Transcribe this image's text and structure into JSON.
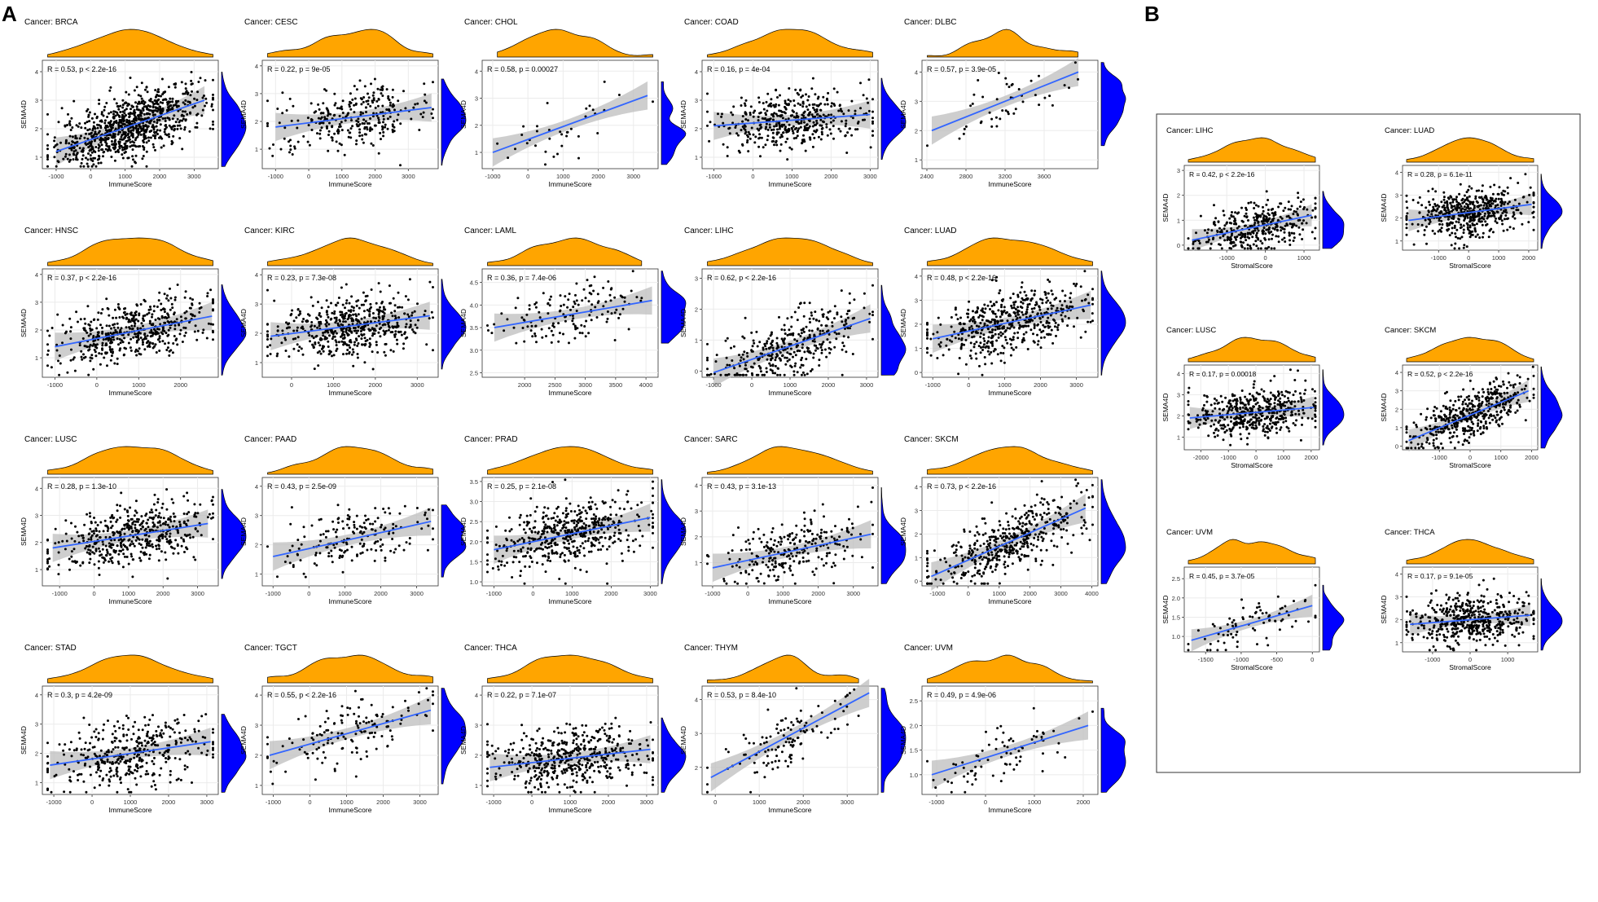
{
  "figure": {
    "panel_a_label": "A",
    "panel_b_label": "B",
    "colors": {
      "top_density": "#FFA500",
      "right_density": "#0000FF",
      "fit_line": "#3366FF",
      "ci_band": "#BEBEBE",
      "points": "#000000",
      "grid": "#EBEBEB",
      "panel_border": "#333333"
    }
  },
  "chart_data": [
    {
      "type": "scatter",
      "panel": "A",
      "title": "Cancer: BRCA",
      "annotation": "R = 0.53, p < 2.2e-16",
      "xlabel": "ImmuneScore",
      "ylabel": "SEMA4D",
      "xlim": [
        -1400,
        3700
      ],
      "ylim": [
        0.6,
        4.4
      ],
      "xticks": [
        "-1000",
        "0",
        "1000",
        "2000",
        "3000"
      ],
      "yticks": [
        "1",
        "2",
        "3",
        "4"
      ],
      "fit": [
        [
          -1000,
          1.2
        ],
        [
          3300,
          3.0
        ]
      ],
      "n_points": 900
    },
    {
      "type": "scatter",
      "panel": "A",
      "title": "Cancer: CESC",
      "annotation": "R = 0.22, p = 9e-05",
      "xlabel": "ImmuneScore",
      "ylabel": "SEMA4D",
      "xlim": [
        -1400,
        3900
      ],
      "ylim": [
        0.3,
        4.2
      ],
      "xticks": [
        "-1000",
        "0",
        "1000",
        "2000",
        "3000"
      ],
      "yticks": [
        "1",
        "2",
        "3",
        "4"
      ],
      "fit": [
        [
          -1000,
          1.8
        ],
        [
          3700,
          2.5
        ]
      ],
      "n_points": 300
    },
    {
      "type": "scatter",
      "panel": "A",
      "title": "Cancer: CHOL",
      "annotation": "R = 0.58, p = 0.00027",
      "xlabel": "ImmuneScore",
      "ylabel": "SEMA4D",
      "xlim": [
        -1300,
        3700
      ],
      "ylim": [
        0.4,
        4.4
      ],
      "xticks": [
        "-1000",
        "0",
        "1000",
        "2000",
        "3000"
      ],
      "yticks": [
        "1",
        "2",
        "3",
        "4"
      ],
      "fit": [
        [
          -1000,
          1.0
        ],
        [
          3400,
          3.1
        ]
      ],
      "n_points": 36
    },
    {
      "type": "scatter",
      "panel": "A",
      "title": "Cancer: COAD",
      "annotation": "R = 0.16, p = 4e-04",
      "xlabel": "ImmuneScore",
      "ylabel": "SEMA4D",
      "xlim": [
        -1300,
        3200
      ],
      "ylim": [
        0.6,
        4.4
      ],
      "xticks": [
        "-1000",
        "0",
        "1000",
        "2000",
        "3000"
      ],
      "yticks": [
        "1",
        "2",
        "3",
        "4"
      ],
      "fit": [
        [
          -1000,
          2.1
        ],
        [
          3000,
          2.5
        ]
      ],
      "n_points": 450
    },
    {
      "type": "scatter",
      "panel": "A",
      "title": "Cancer: DLBC",
      "annotation": "R = 0.57, p = 3.9e-05",
      "xlabel": "ImmuneScore",
      "ylabel": "SEMA4D",
      "xlim": [
        2350,
        4150
      ],
      "ylim": [
        0.7,
        4.4
      ],
      "xticks": [
        "2400",
        "2800",
        "3200",
        "3600"
      ],
      "yticks": [
        "1",
        "2",
        "3",
        "4"
      ],
      "fit": [
        [
          2450,
          2.0
        ],
        [
          3950,
          4.0
        ]
      ],
      "n_points": 47
    },
    {
      "type": "scatter",
      "panel": "A",
      "title": "Cancer: HNSC",
      "annotation": "R = 0.37, p < 2.2e-16",
      "xlabel": "ImmuneScore",
      "ylabel": "SEMA4D",
      "xlim": [
        -1300,
        2900
      ],
      "ylim": [
        0.3,
        4.2
      ],
      "xticks": [
        "-1000",
        "0",
        "1000",
        "2000"
      ],
      "yticks": [
        "1",
        "2",
        "3",
        "4"
      ],
      "fit": [
        [
          -1000,
          1.4
        ],
        [
          2750,
          2.5
        ]
      ],
      "n_points": 500
    },
    {
      "type": "scatter",
      "panel": "A",
      "title": "Cancer: KIRC",
      "annotation": "R = 0.23, p = 7.3e-08",
      "xlabel": "ImmuneScore",
      "ylabel": "SEMA4D",
      "xlim": [
        -700,
        3500
      ],
      "ylim": [
        0.5,
        4.2
      ],
      "xticks": [
        "0",
        "1000",
        "2000",
        "3000"
      ],
      "yticks": [
        "1",
        "2",
        "3",
        "4"
      ],
      "fit": [
        [
          -500,
          1.9
        ],
        [
          3300,
          2.6
        ]
      ],
      "n_points": 530
    },
    {
      "type": "scatter",
      "panel": "A",
      "title": "Cancer: LAML",
      "annotation": "R = 0.36, p = 7.4e-06",
      "xlabel": "ImmuneScore",
      "ylabel": "SEMA4D",
      "xlim": [
        1300,
        4200
      ],
      "ylim": [
        2.4,
        4.8
      ],
      "xticks": [
        "2000",
        "2500",
        "3000",
        "3500",
        "4000"
      ],
      "yticks": [
        "2.5",
        "3.0",
        "3.5",
        "4.0",
        "4.5"
      ],
      "fit": [
        [
          1500,
          3.5
        ],
        [
          4100,
          4.1
        ]
      ],
      "n_points": 150
    },
    {
      "type": "scatter",
      "panel": "A",
      "title": "Cancer: LIHC",
      "annotation": "R = 0.62, p < 2.2e-16",
      "xlabel": "ImmuneScore",
      "ylabel": "SEMA4D",
      "xlim": [
        -1300,
        3300
      ],
      "ylim": [
        -0.2,
        3.3
      ],
      "xticks": [
        "-1000",
        "0",
        "1000",
        "2000",
        "3000"
      ],
      "yticks": [
        "0",
        "1",
        "2",
        "3"
      ],
      "fit": [
        [
          -1000,
          -0.05
        ],
        [
          3100,
          1.7
        ]
      ],
      "n_points": 370
    },
    {
      "type": "scatter",
      "panel": "A",
      "title": "Cancer: LUAD",
      "annotation": "R = 0.48, p < 2.2e-16",
      "xlabel": "ImmuneScore",
      "ylabel": "SEMA4D",
      "xlim": [
        -1300,
        3600
      ],
      "ylim": [
        -0.2,
        4.3
      ],
      "xticks": [
        "-1000",
        "0",
        "1000",
        "2000",
        "3000"
      ],
      "yticks": [
        "0",
        "1",
        "2",
        "3",
        "4"
      ],
      "fit": [
        [
          -1000,
          1.4
        ],
        [
          3400,
          2.8
        ]
      ],
      "n_points": 520
    },
    {
      "type": "scatter",
      "panel": "A",
      "title": "Cancer: LUSC",
      "annotation": "R = 0.28, p = 1.3e-10",
      "xlabel": "ImmuneScore",
      "ylabel": "SEMA4D",
      "xlim": [
        -1500,
        3600
      ],
      "ylim": [
        0.4,
        4.4
      ],
      "xticks": [
        "-1000",
        "0",
        "1000",
        "2000",
        "3000"
      ],
      "yticks": [
        "1",
        "2",
        "3",
        "4"
      ],
      "fit": [
        [
          -1200,
          1.8
        ],
        [
          3300,
          2.7
        ]
      ],
      "n_points": 500
    },
    {
      "type": "scatter",
      "panel": "A",
      "title": "Cancer: PAAD",
      "annotation": "R = 0.43, p = 2.5e-09",
      "xlabel": "ImmuneScore",
      "ylabel": "SEMA4D",
      "xlim": [
        -1300,
        3600
      ],
      "ylim": [
        0.6,
        4.3
      ],
      "xticks": [
        "-1000",
        "0",
        "1000",
        "2000",
        "3000"
      ],
      "yticks": [
        "1",
        "2",
        "3",
        "4"
      ],
      "fit": [
        [
          -1000,
          1.6
        ],
        [
          3400,
          2.8
        ]
      ],
      "n_points": 180
    },
    {
      "type": "scatter",
      "panel": "A",
      "title": "Cancer: PRAD",
      "annotation": "R = 0.25, p = 2.1e-08",
      "xlabel": "ImmuneScore",
      "ylabel": "SEMA4D",
      "xlim": [
        -1300,
        3200
      ],
      "ylim": [
        0.9,
        3.6
      ],
      "xticks": [
        "-1000",
        "0",
        "1000",
        "2000",
        "3000"
      ],
      "yticks": [
        "1.0",
        "1.5",
        "2.0",
        "2.5",
        "3.0",
        "3.5"
      ],
      "fit": [
        [
          -1000,
          1.8
        ],
        [
          3000,
          2.6
        ]
      ],
      "n_points": 500
    },
    {
      "type": "scatter",
      "panel": "A",
      "title": "Cancer: SARC",
      "annotation": "R = 0.43, p = 3.1e-13",
      "xlabel": "ImmuneScore",
      "ylabel": "SEMA4D",
      "xlim": [
        -1300,
        3700
      ],
      "ylim": [
        0.1,
        4.3
      ],
      "xticks": [
        "-1000",
        "0",
        "1000",
        "2000",
        "3000"
      ],
      "yticks": [
        "1",
        "2",
        "3",
        "4"
      ],
      "fit": [
        [
          -1000,
          0.8
        ],
        [
          3500,
          2.1
        ]
      ],
      "n_points": 260
    },
    {
      "type": "scatter",
      "panel": "A",
      "title": "Cancer: SKCM",
      "annotation": "R = 0.73, p < 2.2e-16",
      "xlabel": "ImmuneScore",
      "ylabel": "SEMA4D",
      "xlim": [
        -1500,
        4200
      ],
      "ylim": [
        -0.2,
        4.4
      ],
      "xticks": [
        "-1000",
        "0",
        "1000",
        "2000",
        "3000",
        "4000"
      ],
      "yticks": [
        "0",
        "1",
        "2",
        "3",
        "4"
      ],
      "fit": [
        [
          -1200,
          0.2
        ],
        [
          3800,
          3.1
        ]
      ],
      "n_points": 470
    },
    {
      "type": "scatter",
      "panel": "A",
      "title": "Cancer: STAD",
      "annotation": "R = 0.3, p = 4.2e-09",
      "xlabel": "ImmuneScore",
      "ylabel": "SEMA4D",
      "xlim": [
        -1300,
        3300
      ],
      "ylim": [
        0.6,
        4.3
      ],
      "xticks": [
        "-1000",
        "0",
        "1000",
        "2000",
        "3000"
      ],
      "yticks": [
        "1",
        "2",
        "3",
        "4"
      ],
      "fit": [
        [
          -1100,
          1.6
        ],
        [
          3100,
          2.4
        ]
      ],
      "n_points": 400
    },
    {
      "type": "scatter",
      "panel": "A",
      "title": "Cancer: TGCT",
      "annotation": "R = 0.55, p < 2.2e-16",
      "xlabel": "ImmuneScore",
      "ylabel": "SEMA4D",
      "xlim": [
        -1300,
        3500
      ],
      "ylim": [
        0.7,
        4.3
      ],
      "xticks": [
        "-1000",
        "0",
        "1000",
        "2000",
        "3000"
      ],
      "yticks": [
        "1",
        "2",
        "3",
        "4"
      ],
      "fit": [
        [
          -1100,
          2.0
        ],
        [
          3300,
          3.5
        ]
      ],
      "n_points": 150
    },
    {
      "type": "scatter",
      "panel": "A",
      "title": "Cancer: THCA",
      "annotation": "R = 0.22, p = 7.1e-07",
      "xlabel": "ImmuneScore",
      "ylabel": "SEMA4D",
      "xlim": [
        -1300,
        3300
      ],
      "ylim": [
        0.7,
        4.3
      ],
      "xticks": [
        "-1000",
        "0",
        "1000",
        "2000",
        "3000"
      ],
      "yticks": [
        "1",
        "2",
        "3",
        "4"
      ],
      "fit": [
        [
          -1100,
          1.6
        ],
        [
          3100,
          2.2
        ]
      ],
      "n_points": 500
    },
    {
      "type": "scatter",
      "panel": "A",
      "title": "Cancer: THYM",
      "annotation": "R = 0.53, p = 8.4e-10",
      "xlabel": "ImmuneScore",
      "ylabel": "SEMA4D",
      "xlim": [
        -300,
        3700
      ],
      "ylim": [
        1.2,
        4.4
      ],
      "xticks": [
        "0",
        "1000",
        "2000",
        "3000"
      ],
      "yticks": [
        "2",
        "3",
        "4"
      ],
      "fit": [
        [
          -100,
          1.7
        ],
        [
          3500,
          4.2
        ]
      ],
      "n_points": 120
    },
    {
      "type": "scatter",
      "panel": "A",
      "title": "Cancer: UVM",
      "annotation": "R = 0.49, p = 4.9e-06",
      "xlabel": "ImmuneScore",
      "ylabel": "SEMA4D",
      "xlim": [
        -1300,
        2300
      ],
      "ylim": [
        0.6,
        2.8
      ],
      "xticks": [
        "-1000",
        "0",
        "1000",
        "2000"
      ],
      "yticks": [
        "1.0",
        "1.5",
        "2.0",
        "2.5"
      ],
      "fit": [
        [
          -1100,
          1.0
        ],
        [
          2100,
          2.0
        ]
      ],
      "n_points": 80
    },
    {
      "type": "scatter",
      "panel": "B",
      "title": "Cancer: LIHC",
      "annotation": "R = 0.42, p < 2.2e-16",
      "xlabel": "StromalScore",
      "ylabel": "SEMA4D",
      "xlim": [
        -2100,
        1400
      ],
      "ylim": [
        -0.2,
        3.2
      ],
      "xticks": [
        "-1000",
        "0",
        "1000"
      ],
      "yticks": [
        "0",
        "1",
        "2",
        "3"
      ],
      "fit": [
        [
          -1900,
          0.2
        ],
        [
          1200,
          1.2
        ]
      ],
      "n_points": 370
    },
    {
      "type": "scatter",
      "panel": "B",
      "title": "Cancer: LUAD",
      "annotation": "R = 0.28, p = 6.1e-11",
      "xlabel": "StromalScore",
      "ylabel": "SEMA4D",
      "xlim": [
        -2200,
        2300
      ],
      "ylim": [
        0.6,
        4.3
      ],
      "xticks": [
        "-1000",
        "0",
        "1000",
        "2000"
      ],
      "yticks": [
        "1",
        "2",
        "3",
        "4"
      ],
      "fit": [
        [
          -2000,
          1.9
        ],
        [
          2100,
          2.6
        ]
      ],
      "n_points": 520
    },
    {
      "type": "scatter",
      "panel": "B",
      "title": "Cancer: LUSC",
      "annotation": "R = 0.17, p = 0.00018",
      "xlabel": "StromalScore",
      "ylabel": "SEMA4D",
      "xlim": [
        -2600,
        2300
      ],
      "ylim": [
        0.4,
        4.4
      ],
      "xticks": [
        "-2000",
        "-1000",
        "0",
        "1000",
        "2000"
      ],
      "yticks": [
        "1",
        "2",
        "3",
        "4"
      ],
      "fit": [
        [
          -2400,
          1.9
        ],
        [
          2100,
          2.4
        ]
      ],
      "n_points": 500
    },
    {
      "type": "scatter",
      "panel": "B",
      "title": "Cancer: SKCM",
      "annotation": "R = 0.52, p < 2.2e-16",
      "xlabel": "StromalScore",
      "ylabel": "SEMA4D",
      "xlim": [
        -2200,
        2200
      ],
      "ylim": [
        -0.2,
        4.4
      ],
      "xticks": [
        "-1000",
        "0",
        "1000",
        "2000"
      ],
      "yticks": [
        "0",
        "1",
        "2",
        "3",
        "4"
      ],
      "fit": [
        [
          -2000,
          0.3
        ],
        [
          1900,
          3.0
        ]
      ],
      "n_points": 470
    },
    {
      "type": "scatter",
      "panel": "B",
      "title": "Cancer: UVM",
      "annotation": "R = 0.45, p = 3.7e-05",
      "xlabel": "StromalScore",
      "ylabel": "SEMA4D",
      "xlim": [
        -1800,
        100
      ],
      "ylim": [
        0.6,
        2.8
      ],
      "xticks": [
        "-1500",
        "-1000",
        "-500",
        "0"
      ],
      "yticks": [
        "1.0",
        "1.5",
        "2.0",
        "2.5"
      ],
      "fit": [
        [
          -1700,
          0.9
        ],
        [
          0,
          1.8
        ]
      ],
      "n_points": 80
    },
    {
      "type": "scatter",
      "panel": "B",
      "title": "Cancer: THCA",
      "annotation": "R = 0.17, p = 9.1e-05",
      "xlabel": "StromalScore",
      "ylabel": "SEMA4D",
      "xlim": [
        -1800,
        1800
      ],
      "ylim": [
        0.6,
        4.3
      ],
      "xticks": [
        "-1000",
        "0",
        "1000"
      ],
      "yticks": [
        "1",
        "2",
        "3",
        "4"
      ],
      "fit": [
        [
          -1600,
          1.8
        ],
        [
          1600,
          2.2
        ]
      ],
      "n_points": 500
    }
  ]
}
